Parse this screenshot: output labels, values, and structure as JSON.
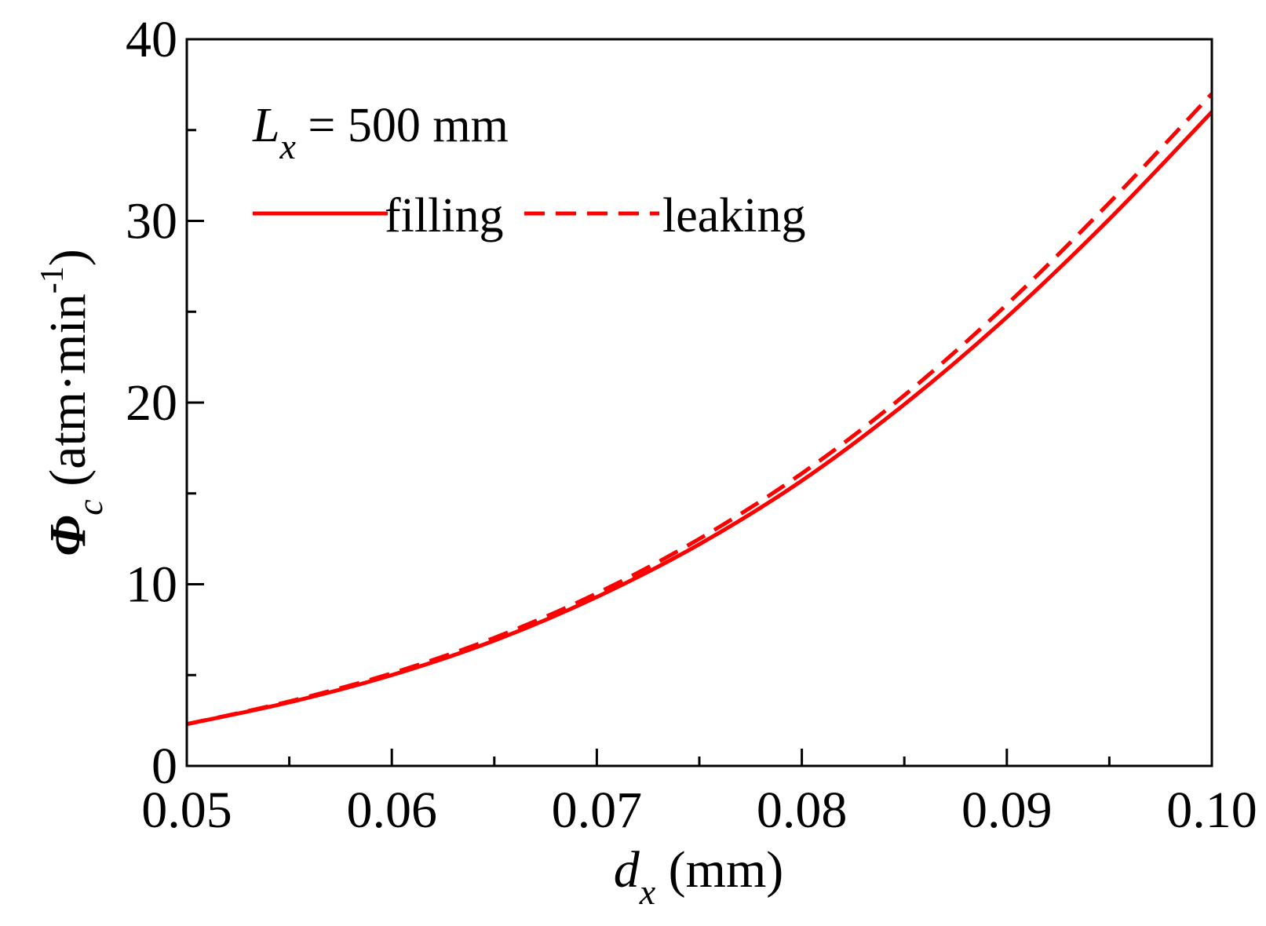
{
  "chart_data": {
    "type": "line",
    "title": "",
    "annotation": {
      "symbol": "L",
      "subscript": "x",
      "text": " = 500 mm"
    },
    "xlabel": {
      "symbol": "d",
      "subscript": "x",
      "unit": " (mm)"
    },
    "ylabel": {
      "symbol": "Φ",
      "subscript": "c",
      "unit": " (atm·min",
      "superscript": "-1",
      "close": ")"
    },
    "xlim": [
      0.05,
      0.1
    ],
    "ylim": [
      0,
      40
    ],
    "x_ticks": [
      0.05,
      0.06,
      0.07,
      0.08,
      0.09,
      0.1
    ],
    "x_tick_labels": [
      "0.05",
      "0.06",
      "0.07",
      "0.08",
      "0.09",
      "0.10"
    ],
    "x_minor_ticks": [
      0.055,
      0.065,
      0.075,
      0.085,
      0.095
    ],
    "y_ticks": [
      0,
      10,
      20,
      30,
      40
    ],
    "y_tick_labels": [
      "0",
      "10",
      "20",
      "30",
      "40"
    ],
    "y_minor_ticks": [
      5,
      15,
      25,
      35
    ],
    "legend_position": "top-left",
    "x": [
      0.05,
      0.055,
      0.06,
      0.065,
      0.07,
      0.075,
      0.08,
      0.085,
      0.09,
      0.095,
      0.1
    ],
    "series": [
      {
        "name": "filling",
        "style": "solid",
        "color": "#ff0000",
        "values": [
          2.3,
          3.5,
          5.0,
          6.9,
          9.3,
          12.2,
          15.7,
          19.9,
          24.7,
          30.1,
          36.0
        ]
      },
      {
        "name": "leaking",
        "style": "dashed",
        "color": "#ff0000",
        "values": [
          2.3,
          3.55,
          5.1,
          7.05,
          9.5,
          12.5,
          16.1,
          20.4,
          25.4,
          31.0,
          37.0
        ]
      }
    ]
  }
}
